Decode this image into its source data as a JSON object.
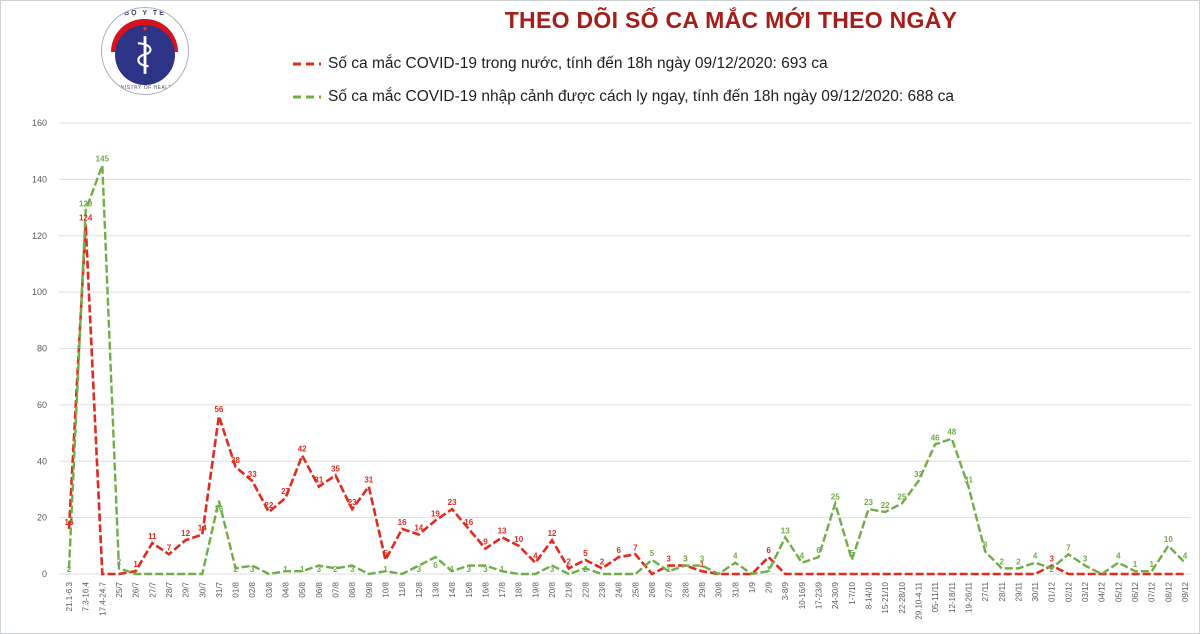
{
  "header": {
    "title": "THEO DÕI SỐ CA MẮC MỚI THEO NGÀY",
    "title_color": "#a41e1a",
    "logo_text": "BỘ Y TẾ",
    "logo_subtext": "MINISTRY OF HEALTH"
  },
  "legend": [
    {
      "label": "Số ca mắc COVID-19 trong nước, tính đến 18h ngày 09/12/2020: 693 ca",
      "color": "#e02b20"
    },
    {
      "label": "Số ca mắc COVID-19 nhập cảnh được cách ly ngay, tính đến 18h ngày 09/12/2020: 688 ca",
      "color": "#70ad47"
    }
  ],
  "chart_data": {
    "type": "line",
    "title": "THEO DÕI SỐ CA MẮC MỚI THEO NGÀY",
    "xlabel": "",
    "ylabel": "",
    "ylim": [
      0,
      160
    ],
    "ytick_step": 20,
    "grid": true,
    "legend_position": "top",
    "line_style": "dashed",
    "point_labels": true,
    "categories": [
      "21.1-6.3",
      "7.3-16.4",
      "17.4-24.7",
      "25/7",
      "26/7",
      "27/7",
      "28/7",
      "29/7",
      "30/7",
      "31/7",
      "01/8",
      "02/8",
      "03/8",
      "04/8",
      "05/8",
      "06/8",
      "07/8",
      "08/8",
      "09/8",
      "10/8",
      "11/8",
      "12/8",
      "13/8",
      "14/8",
      "15/8",
      "16/8",
      "17/8",
      "18/8",
      "19/8",
      "20/8",
      "21/8",
      "22/8",
      "23/8",
      "24/8",
      "25/8",
      "26/8",
      "27/8",
      "28/8",
      "29/8",
      "30/8",
      "31/8",
      "1/9",
      "2/9",
      "3-8/9",
      "10-16/9",
      "17-23/9",
      "24-30/9",
      "1-7/10",
      "8-14/10",
      "15-21/10",
      "22-28/10",
      "29.10-4.11",
      "05-11/11",
      "12-18/11",
      "19-26/11",
      "27/11",
      "28/11",
      "29/11",
      "30/11",
      "01/12",
      "02/12",
      "03/12",
      "04/12",
      "05/12",
      "06/12",
      "07/12",
      "08/12",
      "09/12"
    ],
    "series": [
      {
        "name": "Số ca mắc COVID-19 trong nước",
        "color": "#e02b20",
        "total_label": "693 ca",
        "values": [
          16,
          124,
          0,
          0,
          1,
          11,
          7,
          12,
          14,
          56,
          38,
          33,
          22,
          27,
          42,
          31,
          35,
          23,
          31,
          5,
          16,
          14,
          19,
          23,
          16,
          9,
          13,
          10,
          4,
          12,
          2,
          5,
          2,
          6,
          7,
          0,
          3,
          3,
          1,
          0,
          0,
          0,
          6,
          0,
          0,
          0,
          0,
          0,
          0,
          0,
          0,
          0,
          0,
          0,
          0,
          0,
          0,
          0,
          0,
          3,
          0,
          0,
          0,
          0,
          0,
          0,
          0,
          0
        ]
      },
      {
        "name": "Số ca mắc COVID-19 nhập cảnh được cách ly ngay",
        "color": "#70ad47",
        "total_label": "688 ca",
        "values": [
          2,
          129,
          145,
          2,
          0,
          0,
          0,
          0,
          0,
          26,
          2,
          3,
          0,
          1,
          1,
          3,
          2,
          3,
          0,
          1,
          0,
          3,
          6,
          1,
          3,
          3,
          1,
          0,
          0,
          3,
          0,
          2,
          0,
          0,
          0,
          5,
          1,
          3,
          3,
          0,
          4,
          0,
          1,
          13,
          4,
          6,
          25,
          5,
          23,
          22,
          25,
          33,
          46,
          48,
          31,
          8,
          2,
          2,
          4,
          2,
          7,
          3,
          0,
          4,
          1,
          1,
          10,
          4
        ]
      }
    ]
  }
}
